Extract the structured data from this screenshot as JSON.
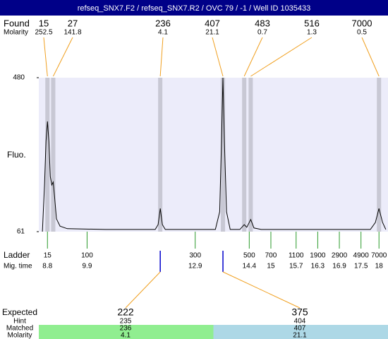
{
  "header": {
    "title": "refseq_SNX7.F2 / refseq_SNX7.R2 / OVC 79 / -1 / Well ID 1035433"
  },
  "chart_data": {
    "type": "line",
    "ylabel": "Fluo.",
    "ylim": [
      61,
      480
    ],
    "yticks": [
      61,
      480
    ],
    "xlim": [
      8.56,
      18.25
    ],
    "color": "#000000",
    "background": "#ececfa",
    "band_color": "#c8c8d4",
    "x": [
      8.66,
      8.72,
      8.76,
      8.8,
      8.84,
      8.88,
      8.92,
      8.96,
      9.0,
      9.05,
      9.15,
      9.35,
      10.42,
      11.79,
      11.87,
      11.93,
      11.99,
      12.07,
      13.46,
      13.58,
      13.63,
      13.67,
      13.71,
      13.77,
      13.87,
      14.14,
      14.26,
      14.33,
      14.44,
      14.53,
      14.73,
      17.76,
      17.9,
      18.0,
      18.1,
      18.19
    ],
    "values": [
      61,
      192,
      307,
      361,
      307,
      211,
      188,
      196,
      153,
      96,
      76,
      69,
      67,
      67,
      80,
      124,
      80,
      67,
      67,
      115,
      307,
      480,
      307,
      115,
      67,
      67,
      80,
      73,
      94,
      71,
      67,
      67,
      86,
      124,
      86,
      67
    ]
  },
  "found": {
    "label": "Found",
    "molarity_label": "Molarity",
    "peaks": [
      {
        "size": 15,
        "molarity": 252.5,
        "time": 8.8
      },
      {
        "size": 27,
        "molarity": 141.8,
        "time": 8.96
      },
      {
        "size": 236,
        "molarity": 4.1,
        "time": 11.93
      },
      {
        "size": 407,
        "molarity": 21.1,
        "time": 13.67
      },
      {
        "size": 483,
        "molarity": 0.7,
        "time": 14.26
      },
      {
        "size": 516,
        "molarity": 1.3,
        "time": 14.44
      },
      {
        "size": 7000,
        "molarity": 0.5,
        "time": 18.0
      }
    ]
  },
  "ladder": {
    "label": "Ladder",
    "time_label": "Mig. time",
    "sizes": [
      15,
      100,
      300,
      500,
      700,
      1100,
      1900,
      2900,
      4900,
      7000
    ],
    "times": [
      8.8,
      9.9,
      12.9,
      14.4,
      15,
      15.7,
      16.3,
      16.9,
      17.5,
      18
    ]
  },
  "expected": {
    "label": "Expected",
    "hint_label": "Hint",
    "matched_label": "Matched",
    "molarity_label": "Molarity",
    "items": [
      {
        "expected": 222,
        "hint": 235,
        "matched": 236,
        "molarity": 4.1,
        "color": "#90ee90"
      },
      {
        "expected": 375,
        "hint": 404,
        "matched": 407,
        "molarity": 21.1,
        "color": "#add8e6"
      }
    ]
  }
}
